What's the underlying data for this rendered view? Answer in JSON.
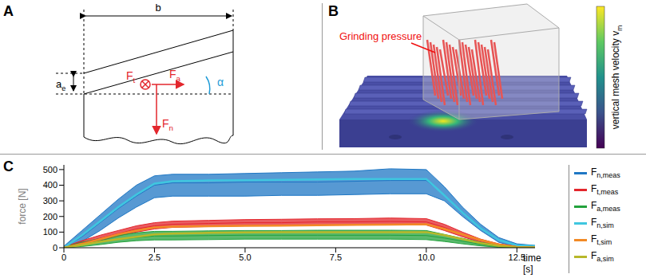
{
  "panel_labels": [
    "A",
    "B",
    "C"
  ],
  "panel_a": {
    "width_label": "b",
    "depth_label": {
      "main": "a",
      "sub": "e"
    },
    "angle_label": "α",
    "forces": [
      {
        "main": "F",
        "sub": "t"
      },
      {
        "main": "F",
        "sub": "a"
      },
      {
        "main": "F",
        "sub": "n"
      }
    ]
  },
  "panel_b": {
    "annotation": "Grinding pressure",
    "colorbar_label": {
      "main": "vertical mesh velocity v",
      "sub": "m"
    }
  },
  "chart_data": {
    "type": "line",
    "x_label": "time [s]",
    "y_label": "force [N]",
    "x": [
      0,
      0.5,
      1,
      1.5,
      2,
      2.5,
      3,
      4,
      5,
      6,
      7,
      8,
      9,
      10,
      10.5,
      11,
      11.5,
      12,
      12.5,
      13
    ],
    "xlim": [
      0,
      13
    ],
    "xticks": [
      0,
      2.5,
      {
        "value": 5,
        "label": "5.0"
      },
      7.5,
      {
        "value": 10,
        "label": "10.0"
      },
      12.5
    ],
    "ylim": [
      0,
      530
    ],
    "yticks": [
      0,
      100,
      200,
      300,
      400,
      500
    ],
    "grid": false,
    "legend": "right",
    "series": [
      {
        "name": "Fn,meas",
        "color": "#1f77c4",
        "values": [
          0,
          70,
          160,
          250,
          330,
          400,
          415,
          415,
          420,
          420,
          420,
          425,
          430,
          430,
          340,
          230,
          130,
          50,
          15,
          10
        ],
        "lower": [
          0,
          40,
          110,
          190,
          260,
          320,
          330,
          330,
          330,
          335,
          335,
          340,
          345,
          345,
          300,
          200,
          110,
          35,
          5,
          5
        ],
        "upper": [
          10,
          110,
          210,
          310,
          400,
          460,
          470,
          470,
          475,
          480,
          485,
          490,
          505,
          500,
          390,
          260,
          150,
          65,
          25,
          15
        ]
      },
      {
        "name": "Ft,meas",
        "color": "#e3262c",
        "values": [
          0,
          30,
          60,
          90,
          120,
          140,
          150,
          155,
          160,
          160,
          165,
          165,
          168,
          165,
          130,
          85,
          45,
          15,
          5,
          3
        ],
        "lower": [
          0,
          20,
          45,
          75,
          100,
          120,
          130,
          135,
          140,
          140,
          145,
          145,
          148,
          145,
          110,
          70,
          35,
          10,
          2,
          0
        ],
        "upper": [
          5,
          45,
          80,
          110,
          140,
          160,
          170,
          175,
          180,
          182,
          185,
          186,
          190,
          186,
          150,
          100,
          55,
          25,
          10,
          6
        ]
      },
      {
        "name": "Fa,meas",
        "color": "#23a23c",
        "values": [
          0,
          20,
          40,
          55,
          65,
          75,
          75,
          78,
          80,
          80,
          80,
          80,
          80,
          78,
          62,
          42,
          22,
          8,
          3,
          2
        ],
        "lower": [
          0,
          8,
          20,
          35,
          45,
          50,
          50,
          52,
          55,
          55,
          55,
          55,
          55,
          52,
          40,
          25,
          12,
          3,
          0,
          0
        ],
        "upper": [
          5,
          35,
          60,
          80,
          95,
          105,
          105,
          108,
          110,
          110,
          112,
          112,
          112,
          110,
          85,
          60,
          35,
          15,
          6,
          5
        ]
      },
      {
        "name": "Fn,sim",
        "color": "#3fc6df",
        "values": [
          0,
          80,
          170,
          260,
          340,
          410,
          425,
          430,
          432,
          435,
          437,
          440,
          440,
          440,
          335,
          225,
          125,
          50,
          15,
          10
        ]
      },
      {
        "name": "Ft,sim",
        "color": "#f28a26",
        "values": [
          0,
          25,
          55,
          85,
          110,
          130,
          135,
          138,
          140,
          142,
          144,
          146,
          148,
          150,
          120,
          85,
          50,
          20,
          5,
          2
        ]
      },
      {
        "name": "Fa,sim",
        "color": "#b8b82a",
        "values": [
          0,
          18,
          38,
          55,
          70,
          85,
          90,
          95,
          98,
          100,
          100,
          100,
          100,
          100,
          80,
          55,
          30,
          12,
          3,
          1
        ]
      }
    ]
  }
}
